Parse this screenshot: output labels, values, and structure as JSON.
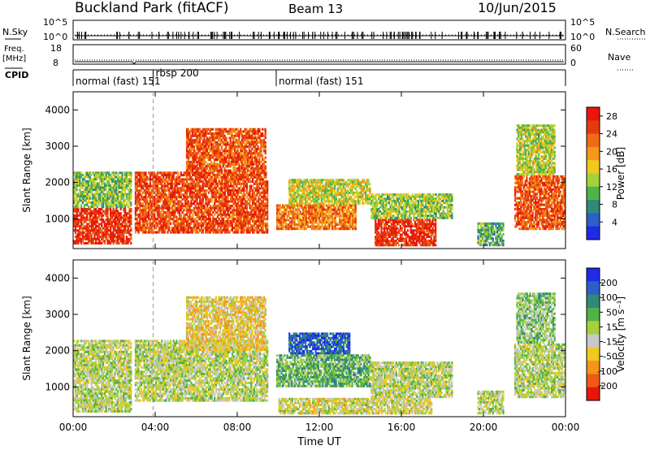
{
  "header": {
    "station": "Buckland Park (fitACF)",
    "beam": "Beam 13",
    "date": "10/Jun/2015"
  },
  "summary": {
    "nsky_label": "N.Sky",
    "nsky_ticks": [
      "10^5",
      "10^0"
    ],
    "nsearch_label": "N.Search",
    "nsearch_ticks": [
      "10^5",
      "10^0"
    ],
    "freq_label": "Freq.",
    "freq_unit": "[MHz]",
    "freq_ticks": [
      "18",
      "8"
    ],
    "nave_label": "Nave",
    "nave_ticks": [
      "60",
      "0"
    ],
    "cpid_label": "CPID",
    "cpid_segments": [
      {
        "label": "normal (fast) 151",
        "start": 0.0,
        "end": 3.9
      },
      {
        "label": "rbsp 200",
        "start": 3.9,
        "end": 9.9
      },
      {
        "label": "normal (fast) 151",
        "start": 9.9,
        "end": 24.0
      }
    ]
  },
  "chart_data": [
    {
      "type": "heatmap",
      "panel": "power",
      "ylabel": "Slant Range [km]",
      "ylim": [
        180,
        4500
      ],
      "yticks": [
        "1000",
        "2000",
        "3000",
        "4000"
      ],
      "xlim": [
        "00:00",
        "24:00"
      ],
      "colorbar": {
        "label": "Power [dB]",
        "ticks": [
          "4",
          "8",
          "12",
          "16",
          "20",
          "24",
          "28"
        ],
        "range": [
          0,
          30
        ],
        "colors": [
          "#1f2be6",
          "#2a60c8",
          "#2f8a7a",
          "#52b24a",
          "#a4d23a",
          "#f0c81e",
          "#f59a18",
          "#f06a14",
          "#e43a10",
          "#e8160c"
        ]
      },
      "bands": [
        {
          "t0": 0.0,
          "t1": 2.85,
          "r0": 300,
          "r1": 1300,
          "level": 27
        },
        {
          "t0": 0.0,
          "t1": 2.85,
          "r0": 1300,
          "r1": 2300,
          "level": 12
        },
        {
          "t0": 3.0,
          "t1": 9.5,
          "r0": 600,
          "r1": 2300,
          "level": 25
        },
        {
          "t0": 5.5,
          "t1": 9.4,
          "r0": 2300,
          "r1": 3500,
          "level": 24
        },
        {
          "t0": 9.9,
          "t1": 13.8,
          "r0": 700,
          "r1": 1400,
          "level": 22
        },
        {
          "t0": 10.5,
          "t1": 14.5,
          "r0": 1400,
          "r1": 2100,
          "level": 15
        },
        {
          "t0": 14.7,
          "t1": 17.7,
          "r0": 250,
          "r1": 1000,
          "level": 27
        },
        {
          "t0": 14.5,
          "t1": 18.5,
          "r0": 1000,
          "r1": 1700,
          "level": 13
        },
        {
          "t0": 19.7,
          "t1": 21.0,
          "r0": 250,
          "r1": 900,
          "level": 10
        },
        {
          "t0": 21.5,
          "t1": 24.0,
          "r0": 700,
          "r1": 2200,
          "level": 24
        },
        {
          "t0": 21.6,
          "t1": 23.5,
          "r0": 2200,
          "r1": 3600,
          "level": 14
        }
      ]
    },
    {
      "type": "heatmap",
      "panel": "velocity",
      "ylabel": "Slant Range [km]",
      "ylim": [
        180,
        4500
      ],
      "yticks": [
        "1000",
        "2000",
        "3000",
        "4000"
      ],
      "xlabel": "Time UT",
      "xlim": [
        "00:00",
        "24:00"
      ],
      "xticks": [
        "00:00",
        "04:00",
        "08:00",
        "12:00",
        "16:00",
        "20:00",
        "00:00"
      ],
      "colorbar": {
        "label": "Velocity [m s⁻¹]",
        "ticks": [
          "200",
          "100",
          "50",
          "15",
          "-15",
          "-50",
          "-100",
          "-200"
        ],
        "range": [
          -250,
          250
        ],
        "colors": [
          "#e8160c",
          "#f05a14",
          "#f5961a",
          "#f0c81e",
          "#c8c8c8",
          "#a4d23a",
          "#52b24a",
          "#2f8a7a",
          "#2a60c8",
          "#1f2be6"
        ]
      },
      "bands": [
        {
          "t0": 0.0,
          "t1": 2.85,
          "r0": 300,
          "r1": 2300,
          "level": 0
        },
        {
          "t0": 3.0,
          "t1": 9.5,
          "r0": 600,
          "r1": 2300,
          "level": 0
        },
        {
          "t0": 5.5,
          "t1": 9.4,
          "r0": 2000,
          "r1": 3500,
          "level": -60
        },
        {
          "t0": 10.5,
          "t1": 13.5,
          "r0": 1900,
          "r1": 2500,
          "level": 180
        },
        {
          "t0": 9.9,
          "t1": 14.5,
          "r0": 1000,
          "r1": 1900,
          "level": 70
        },
        {
          "t0": 10.0,
          "t1": 17.5,
          "r0": 250,
          "r1": 700,
          "level": -25
        },
        {
          "t0": 14.5,
          "t1": 18.5,
          "r0": 700,
          "r1": 1700,
          "level": 0
        },
        {
          "t0": 19.7,
          "t1": 21.0,
          "r0": 250,
          "r1": 900,
          "level": 0
        },
        {
          "t0": 21.5,
          "t1": 24.0,
          "r0": 700,
          "r1": 2200,
          "level": 0
        },
        {
          "t0": 21.6,
          "t1": 23.5,
          "r0": 2200,
          "r1": 3600,
          "level": 35
        }
      ]
    }
  ]
}
